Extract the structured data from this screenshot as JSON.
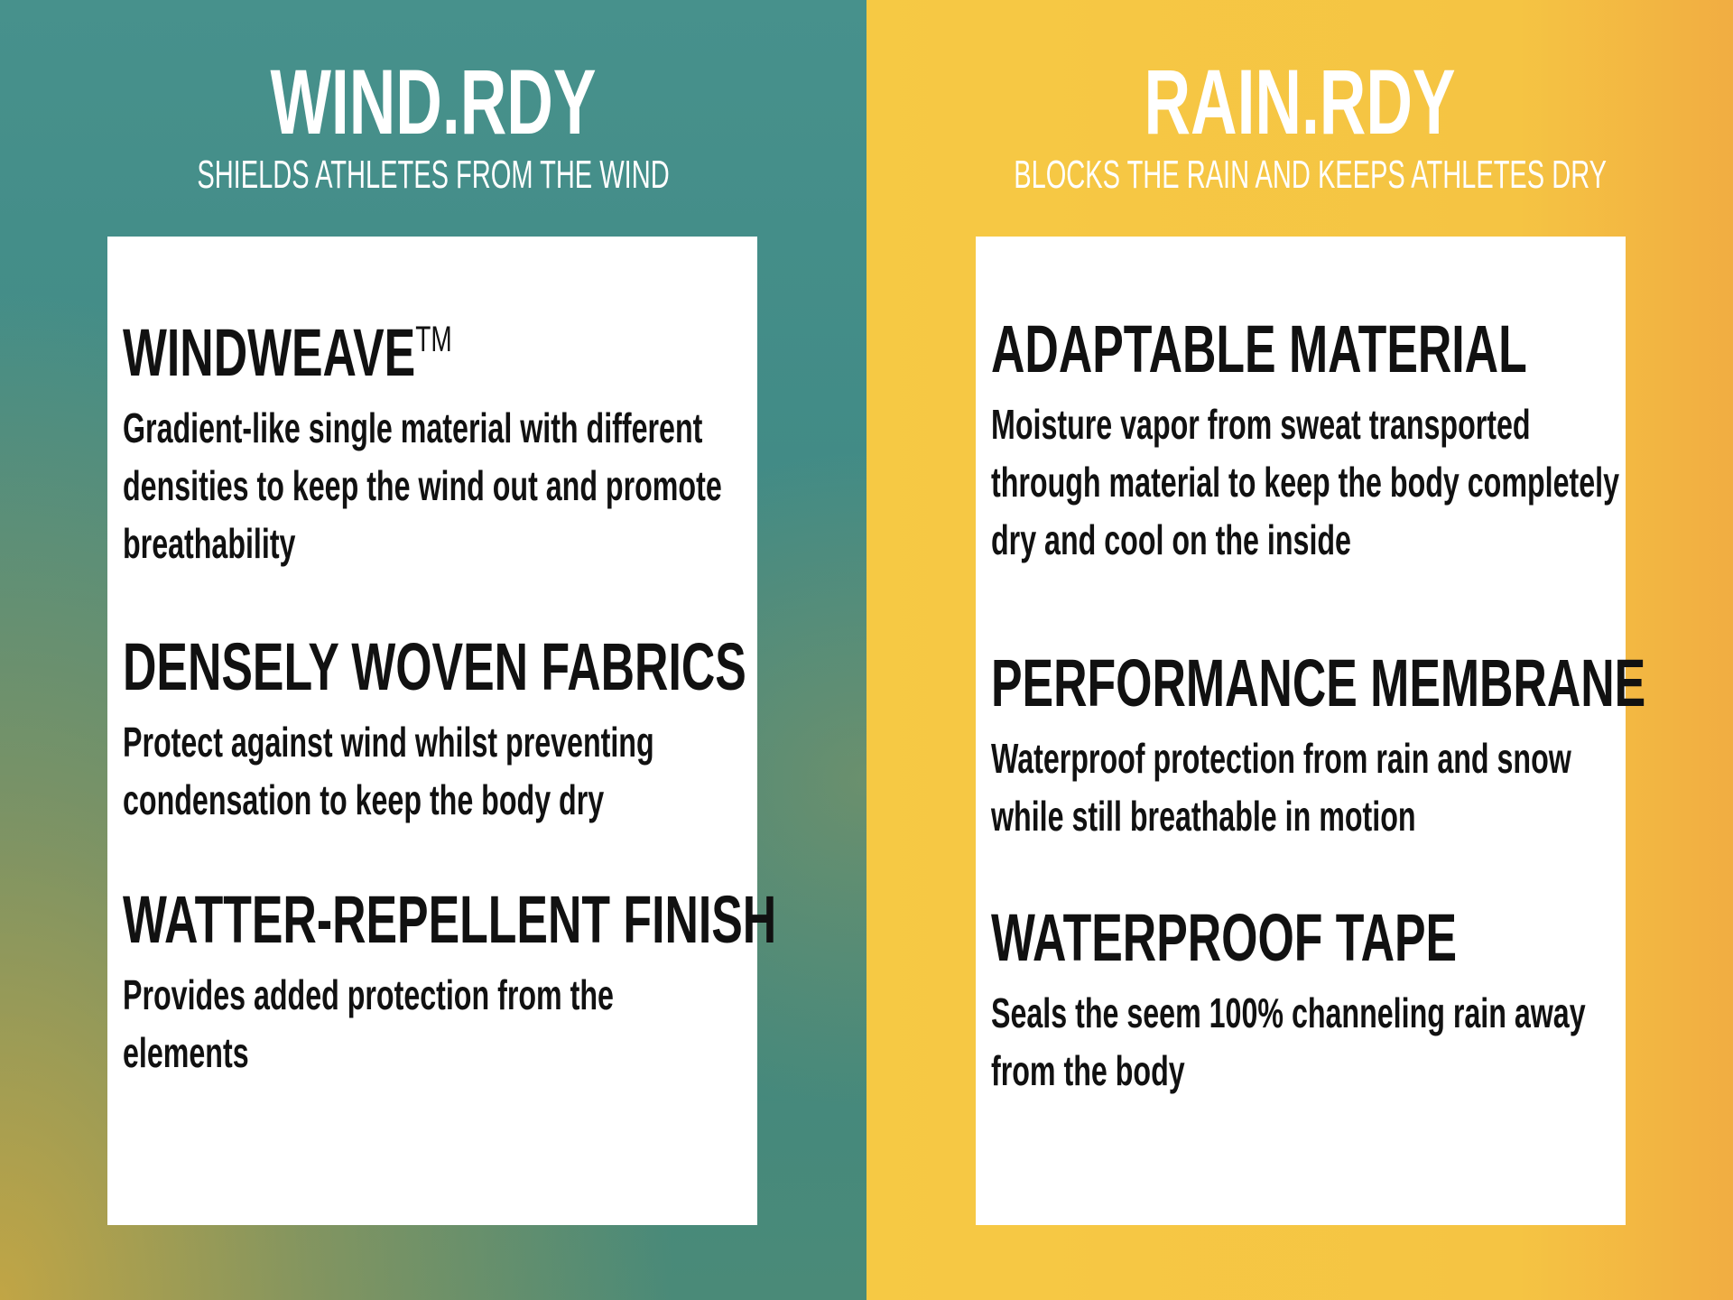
{
  "colors": {
    "left_bg": "#3f8a85",
    "right_bg": "#f5c443",
    "card": "#ffffff",
    "text": "#111111"
  },
  "left": {
    "title": "WIND.RDY",
    "subtitle": "SHIELDS ATHLETES FROM THE WIND",
    "features": [
      {
        "heading": "WINDWEAVE",
        "mark": "TM",
        "body": "Gradient-like single material with different densities to keep the wind out and promote breathability"
      },
      {
        "heading": "DENSELY WOVEN FABRICS",
        "body": "Protect against wind whilst preventing condensation to keep the body dry"
      },
      {
        "heading": "WATTER-REPELLENT FINISH",
        "body": "Provides added protection from the elements"
      }
    ]
  },
  "right": {
    "title": "RAIN.RDY",
    "subtitle": "BLOCKS THE RAIN AND KEEPS ATHLETES DRY",
    "features": [
      {
        "heading": "ADAPTABLE MATERIAL",
        "body": "Moisture vapor from sweat transported through material to keep the body completely dry and cool on the inside"
      },
      {
        "heading": "PERFORMANCE MEMBRANE",
        "body": "Waterproof protection from rain and snow while still breathable in motion"
      },
      {
        "heading": "WATERPROOF TAPE",
        "body": "Seals the seem 100% channeling rain away from the body"
      }
    ]
  }
}
